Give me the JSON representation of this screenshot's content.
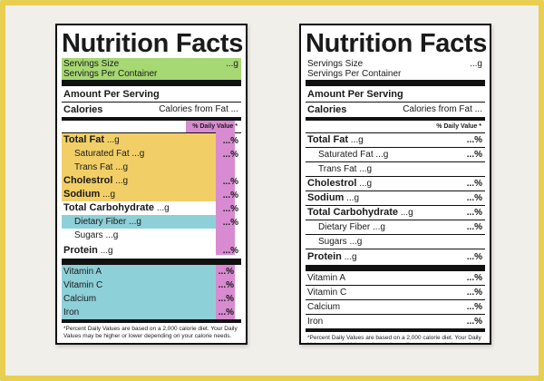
{
  "title": "Nutrition Facts",
  "servings": {
    "size_label": "Servings Size",
    "per_container_label": "Servings Per Container",
    "unit": "...g"
  },
  "amount_per_serving": "Amount Per Serving",
  "calories": {
    "label": "Calories",
    "from_fat": "Calories from Fat ..."
  },
  "daily_value_header": "% Daily Value *",
  "pct": "...%",
  "nutrients": {
    "total_fat": {
      "label": "Total Fat",
      "amount": "...g"
    },
    "saturated_fat": {
      "label": "Saturated Fat",
      "amount": "...g"
    },
    "trans_fat": {
      "label": "Trans Fat",
      "amount": "...g"
    },
    "cholesterol": {
      "label": "Cholestrol",
      "amount": "...g"
    },
    "sodium": {
      "label": "Sodium",
      "amount": "...g"
    },
    "total_carb": {
      "label": "Total Carbohydrate",
      "amount": "...g"
    },
    "dietary_fiber": {
      "label": "Dietary Fiber",
      "amount": "...g"
    },
    "sugars": {
      "label": "Sugars",
      "amount": "...g"
    },
    "protein": {
      "label": "Protein",
      "amount": "...g"
    }
  },
  "vitamins": {
    "a": "Vitamin A",
    "c": "Vitamin C",
    "calcium": "Calcium",
    "iron": "Iron"
  },
  "footnote": "*Percent Daily Values are based on a 2,000 calorie diet. Your Daily Values may be higher or lower depending on your calorie needs.",
  "colors": {
    "frame": "#e8cf52",
    "green": "#a6d873",
    "yellow": "#f2cf66",
    "blue": "#8ed0d8",
    "purple": "#d88bd0"
  }
}
